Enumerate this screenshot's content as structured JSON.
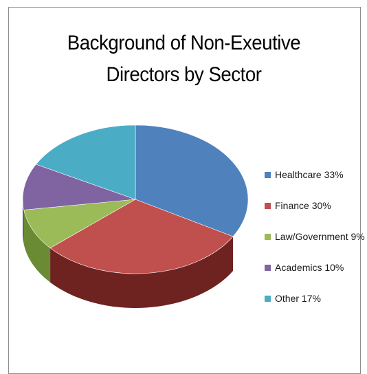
{
  "chart_data": {
    "type": "pie",
    "title": [
      "Background of Non-Exeutive",
      "Directors by Sector"
    ],
    "slices": [
      {
        "label": "Healthcare 33%",
        "value": 33,
        "color": "#4f81bd",
        "side": "#36598a"
      },
      {
        "label": "Finance 30%",
        "value": 30,
        "color": "#c0504d",
        "side": "#6e2321"
      },
      {
        "label": "Law/Government 9%",
        "value": 9,
        "color": "#9bbb59",
        "side": "#6a8a34"
      },
      {
        "label": "Academics 10%",
        "value": 10,
        "color": "#8064a2",
        "side": "#564178"
      },
      {
        "label": "Other 17%",
        "value": 17,
        "color": "#4bacc6",
        "side": "#2e7f95"
      }
    ],
    "style": "3d",
    "legend_position": "right"
  }
}
